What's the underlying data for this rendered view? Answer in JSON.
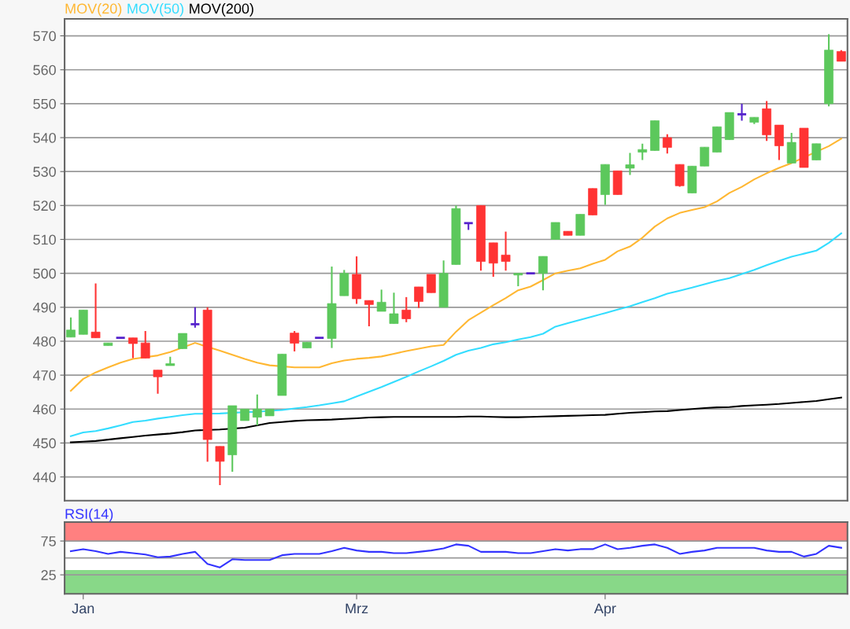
{
  "chart_data": [
    {
      "type": "candlestick",
      "categories": [
        null,
        null,
        null,
        null,
        null,
        null,
        null,
        null,
        null,
        null,
        null,
        null,
        null,
        null,
        null,
        null,
        null,
        null,
        null,
        null,
        null,
        null,
        null,
        null,
        null,
        null,
        null,
        null,
        null,
        null,
        null,
        null,
        null,
        null,
        null,
        null,
        null,
        null,
        null,
        null,
        null,
        null,
        null,
        null,
        null,
        null,
        null,
        null,
        null,
        null,
        null,
        null,
        null,
        null,
        null,
        null,
        null,
        null,
        null,
        null,
        null,
        null,
        null
      ],
      "ohlc": [
        [
          481.2,
          487,
          481.2,
          483.3
        ],
        [
          482,
          489.2,
          482,
          489.2
        ],
        [
          482.7,
          497,
          481,
          481
        ],
        [
          478.7,
          479.5,
          478.7,
          479.5
        ],
        [
          481,
          481,
          481,
          481
        ],
        [
          481,
          481,
          475,
          479.3
        ],
        [
          479.5,
          483,
          475,
          475
        ],
        [
          471.5,
          471.5,
          464.5,
          469.5
        ],
        [
          472.8,
          475.4,
          472.8,
          473.4
        ],
        [
          477.8,
          482.3,
          477.8,
          482.3
        ],
        [
          485,
          490,
          484,
          485
        ],
        [
          489.2,
          490,
          444.5,
          451
        ],
        [
          449,
          449,
          437.6,
          444.6
        ],
        [
          446.5,
          461,
          441.5,
          461
        ],
        [
          456.6,
          460,
          456.6,
          460
        ],
        [
          457.6,
          464.3,
          455.2,
          460
        ],
        [
          458,
          460,
          458,
          460
        ],
        [
          464,
          476.2,
          464,
          476.2
        ],
        [
          482.4,
          483,
          477,
          479.4
        ],
        [
          478,
          479.7,
          478,
          479.7
        ],
        [
          481,
          481,
          481,
          481
        ],
        [
          480.8,
          502,
          478,
          491.1
        ],
        [
          493.4,
          501,
          493.4,
          500
        ],
        [
          499.7,
          505,
          491,
          492.5
        ],
        [
          492,
          492,
          484.4,
          490.8
        ],
        [
          488.8,
          495.2,
          488.8,
          491.5
        ],
        [
          485.2,
          494.3,
          485.2,
          488.1
        ],
        [
          489.2,
          493,
          485.6,
          486.6
        ],
        [
          496,
          496,
          489.8,
          491.7
        ],
        [
          499.7,
          499.7,
          494.3,
          494.3
        ],
        [
          490,
          503.8,
          490,
          500
        ],
        [
          502.6,
          520,
          502.6,
          519.1
        ],
        [
          514.8,
          514.8,
          512.8,
          514.8
        ],
        [
          520,
          520,
          500.8,
          503.5
        ],
        [
          509,
          509,
          499,
          503
        ],
        [
          505.4,
          512.3,
          500.8,
          503.5
        ],
        [
          499.5,
          500,
          496.2,
          500
        ],
        [
          500,
          500,
          500,
          500
        ],
        [
          500,
          505,
          495,
          505
        ],
        [
          510,
          515,
          510,
          515
        ],
        [
          512.4,
          512.4,
          511.2,
          511.2
        ],
        [
          511.2,
          517.4,
          511.2,
          517.4
        ],
        [
          525,
          525,
          517.2,
          517.2
        ],
        [
          523.2,
          532.1,
          520.2,
          532.1
        ],
        [
          530.2,
          530.2,
          523.2,
          523.2
        ],
        [
          531,
          535.5,
          529,
          532
        ],
        [
          535.7,
          538.2,
          533.4,
          536.5
        ],
        [
          536.2,
          545,
          536.2,
          545
        ],
        [
          540,
          541,
          535.3,
          537.1
        ],
        [
          532.1,
          532.1,
          525.5,
          525.8
        ],
        [
          523.7,
          531.6,
          523.7,
          531.6
        ],
        [
          531.6,
          537.2,
          531.6,
          537.2
        ],
        [
          535.7,
          543.2,
          535.7,
          543.2
        ],
        [
          539.4,
          547.4,
          539.4,
          547.4
        ],
        [
          546.9,
          550,
          545,
          546.9
        ],
        [
          544.5,
          546,
          544,
          546
        ],
        [
          548.5,
          550.8,
          539,
          540.8
        ],
        [
          543.7,
          543.7,
          533.4,
          537.6
        ],
        [
          532.5,
          541.4,
          532.5,
          538.6
        ],
        [
          542.8,
          542.8,
          531.2,
          531.2
        ],
        [
          533.4,
          538.2,
          533.4,
          538.2
        ],
        [
          550,
          570.5,
          549.2,
          565.8
        ],
        [
          565.4,
          565.8,
          562.5,
          562.5
        ]
      ],
      "colors": [
        "#5cc85c",
        "#5cc85c",
        "#ff3333",
        "#5cc85c",
        "#5522cc",
        "#ff3333",
        "#ff3333",
        "#ff3333",
        "#5cc85c",
        "#5cc85c",
        "#5522cc",
        "#ff3333",
        "#ff3333",
        "#5cc85c",
        "#5cc85c",
        "#5cc85c",
        "#5cc85c",
        "#5cc85c",
        "#ff3333",
        "#5cc85c",
        "#5522cc",
        "#5cc85c",
        "#5cc85c",
        "#ff3333",
        "#ff3333",
        "#5cc85c",
        "#5cc85c",
        "#ff3333",
        "#ff3333",
        "#ff3333",
        "#5cc85c",
        "#5cc85c",
        "#5522cc",
        "#ff3333",
        "#ff3333",
        "#ff3333",
        "#5cc85c",
        "#5522cc",
        "#5cc85c",
        "#5cc85c",
        "#ff3333",
        "#5cc85c",
        "#ff3333",
        "#5cc85c",
        "#ff3333",
        "#5cc85c",
        "#5cc85c",
        "#5cc85c",
        "#ff3333",
        "#ff3333",
        "#5cc85c",
        "#5cc85c",
        "#5cc85c",
        "#5cc85c",
        "#5522cc",
        "#5cc85c",
        "#ff3333",
        "#ff3333",
        "#5cc85c",
        "#ff3333",
        "#5cc85c",
        "#5cc85c",
        "#ff3333"
      ],
      "series": [
        {
          "type": "line",
          "name": "MOV(20)",
          "color": "#ffb732",
          "values": [
            465.4,
            468.9,
            470.8,
            472.3,
            473.7,
            474.8,
            null,
            475.8,
            476.8,
            null,
            479.5,
            null,
            477.2,
            476,
            474.8,
            473.7,
            472.9,
            null,
            472.3,
            472.3,
            472.3,
            473.5,
            474.3,
            474.8,
            475.1,
            475.5,
            476.3,
            477.1,
            477.8,
            478.5,
            478.9,
            482.8,
            486.2,
            488.4,
            490.6,
            492.7,
            495,
            496.1,
            498,
            500,
            500.8,
            501.5,
            502.8,
            504,
            506.5,
            507.9,
            510.5,
            513.8,
            516.2,
            517.8,
            518.7,
            519.5,
            521.2,
            523.7,
            525.5,
            527.7,
            529.5,
            531.1,
            532.5,
            null,
            null,
            537.5,
            539.7
          ]
        },
        {
          "type": "line",
          "name": "MOV(50)",
          "color": "#33ddff",
          "values": [
            452,
            453.1,
            453.5,
            454.3,
            455.2,
            456.2,
            456.6,
            457.2,
            457.7,
            458.2,
            458.6,
            null,
            458.7,
            null,
            459.1,
            459.2,
            459.5,
            459.7,
            460.2,
            460.6,
            461.1,
            461.7,
            462.3,
            463.7,
            465.1,
            466.5,
            468,
            469.5,
            471.1,
            472.6,
            474.2,
            476,
            477.2,
            478,
            479.1,
            479.7,
            480.5,
            481.2,
            482.2,
            484.3,
            485.3,
            486.3,
            487.3,
            488.3,
            489.3,
            490.3,
            491.5,
            492.7,
            494,
            494.9,
            495.8,
            496.8,
            497.8,
            498.6,
            499.8,
            501,
            502.4,
            503.7,
            504.9,
            505.8,
            506.7,
            509,
            511.8
          ]
        },
        {
          "type": "line",
          "name": "MOV(200)",
          "color": "#000000",
          "values": [
            450.2,
            450.4,
            450.6,
            451,
            451.4,
            451.8,
            452.2,
            452.5,
            452.8,
            453.2,
            453.7,
            null,
            454,
            null,
            454.5,
            455.2,
            455.9,
            456.2,
            456.5,
            456.7,
            456.8,
            456.9,
            457.1,
            457.3,
            457.5,
            457.6,
            457.7,
            457.7,
            457.7,
            457.7,
            457.7,
            457.7,
            457.8,
            457.8,
            457.7,
            457.6,
            457.6,
            457.7,
            457.8,
            457.9,
            458,
            458.1,
            458.2,
            458.3,
            458.6,
            458.9,
            459.1,
            459.3,
            459.4,
            459.7,
            460,
            460.3,
            460.5,
            460.6,
            460.9,
            461.1,
            461.3,
            461.5,
            461.8,
            462.1,
            462.4,
            462.9,
            463.4
          ]
        }
      ],
      "ylim": [
        433,
        575
      ],
      "yticks": [
        440,
        450,
        460,
        470,
        480,
        490,
        500,
        510,
        520,
        530,
        540,
        550,
        560,
        570
      ],
      "grid": "y",
      "tick_labels": "y",
      "legend": "top left"
    },
    {
      "type": "line",
      "categories": [
        null,
        "Jan",
        null,
        null,
        null,
        null,
        null,
        null,
        null,
        null,
        null,
        null,
        null,
        null,
        null,
        null,
        null,
        null,
        null,
        null,
        null,
        null,
        null,
        "Mrz",
        null,
        null,
        null,
        null,
        null,
        null,
        null,
        null,
        null,
        null,
        null,
        null,
        null,
        null,
        null,
        null,
        null,
        null,
        null,
        "Apr",
        null,
        null,
        null,
        null,
        null,
        null,
        null,
        null,
        null,
        null,
        null,
        null,
        null,
        null,
        null,
        null,
        null,
        null,
        null
      ],
      "series": [
        {
          "name": "RSI(14)",
          "color": "#3333ff",
          "values": [
            60,
            63,
            60,
            56,
            59,
            57,
            55,
            51,
            52,
            56,
            59,
            41,
            36,
            48,
            47,
            47,
            47,
            54,
            56,
            56,
            56,
            60,
            65,
            61,
            59,
            59,
            57,
            57,
            59,
            61,
            64,
            70,
            68,
            59,
            59,
            59,
            57,
            57,
            60,
            63,
            61,
            63,
            63,
            70,
            63,
            65,
            68,
            70,
            65,
            56,
            59,
            61,
            65,
            65,
            65,
            65,
            61,
            59,
            59,
            52,
            56,
            68,
            65
          ]
        }
      ],
      "ylim": [
        -3,
        103
      ],
      "yticks": [
        25,
        75
      ],
      "grid": "y",
      "bands": [
        {
          "axis": "y",
          "from": 75,
          "to": 103,
          "color": "#ff8080"
        },
        {
          "axis": "y",
          "from": -3,
          "to": 32,
          "color": "#88d888"
        }
      ],
      "ref_lines": [
        {
          "axis": "y",
          "value": 50,
          "color": "#999999"
        }
      ],
      "legend": "top left"
    }
  ]
}
